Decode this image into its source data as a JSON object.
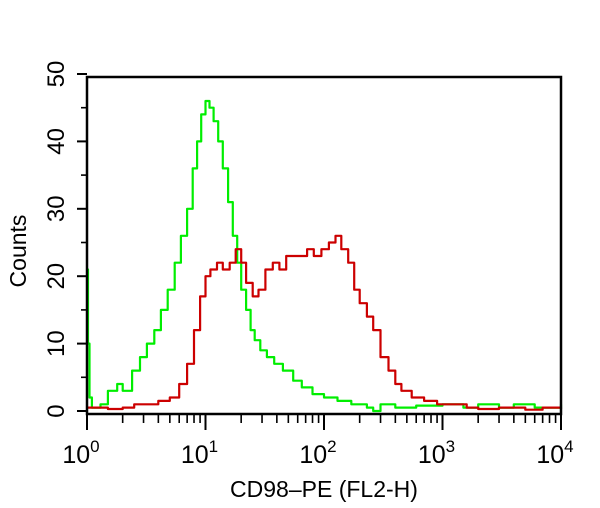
{
  "chart_data": {
    "type": "line",
    "title": "",
    "xlabel": "CD98–PE (FL2-H)",
    "ylabel": "Counts",
    "x_scale": "log",
    "xlim": [
      1,
      10000
    ],
    "ylim": [
      0,
      50
    ],
    "x_ticks": [
      {
        "value": 1,
        "base": "10",
        "exp": "0"
      },
      {
        "value": 10,
        "base": "10",
        "exp": "1"
      },
      {
        "value": 100,
        "base": "10",
        "exp": "2"
      },
      {
        "value": 1000,
        "base": "10",
        "exp": "3"
      },
      {
        "value": 10000,
        "base": "10",
        "exp": "4"
      }
    ],
    "y_ticks": [
      0,
      10,
      20,
      30,
      40,
      50
    ],
    "y_tick_labels": [
      "0",
      "10",
      "20",
      "30",
      "40",
      "50"
    ],
    "grid": false,
    "legend": "none",
    "series": [
      {
        "color": "#00ee00",
        "points": [
          [
            1.0,
            21
          ],
          [
            1.02,
            10
          ],
          [
            1.05,
            2
          ],
          [
            1.1,
            0.5
          ],
          [
            1.3,
            1
          ],
          [
            1.5,
            3
          ],
          [
            1.8,
            4
          ],
          [
            2.0,
            3
          ],
          [
            2.4,
            6
          ],
          [
            2.8,
            8
          ],
          [
            3.2,
            10
          ],
          [
            3.7,
            12
          ],
          [
            4.2,
            15
          ],
          [
            4.8,
            18
          ],
          [
            5.5,
            22
          ],
          [
            6.2,
            26
          ],
          [
            7.0,
            30
          ],
          [
            7.8,
            36
          ],
          [
            8.5,
            40
          ],
          [
            9.2,
            44
          ],
          [
            10.0,
            46
          ],
          [
            10.8,
            45
          ],
          [
            11.7,
            43
          ],
          [
            12.8,
            40
          ],
          [
            14.0,
            36
          ],
          [
            15.5,
            31
          ],
          [
            17.0,
            26
          ],
          [
            18.5,
            22
          ],
          [
            20.0,
            18
          ],
          [
            22.0,
            15
          ],
          [
            24.0,
            12
          ],
          [
            26.0,
            10.5
          ],
          [
            29.0,
            9
          ],
          [
            33.0,
            8
          ],
          [
            38.0,
            7
          ],
          [
            45.0,
            6
          ],
          [
            55.0,
            4.5
          ],
          [
            65.0,
            3.5
          ],
          [
            80.0,
            2.5
          ],
          [
            100.0,
            2
          ],
          [
            130.0,
            1.5
          ],
          [
            170.0,
            1
          ],
          [
            230.0,
            0.5
          ],
          [
            260.0,
            0
          ],
          [
            300.0,
            1
          ],
          [
            400.0,
            0.5
          ],
          [
            600.0,
            0.8
          ],
          [
            1000.0,
            1
          ],
          [
            1500.0,
            0.5
          ],
          [
            2000.0,
            1
          ],
          [
            3000.0,
            0.5
          ],
          [
            4000.0,
            1
          ],
          [
            6000.0,
            0.5
          ],
          [
            10000.0,
            1
          ]
        ]
      },
      {
        "color": "#cc0000",
        "points": [
          [
            1.0,
            0.5
          ],
          [
            1.5,
            0.3
          ],
          [
            2.0,
            0.5
          ],
          [
            2.5,
            1
          ],
          [
            3.0,
            1
          ],
          [
            4.0,
            1.5
          ],
          [
            5.0,
            2
          ],
          [
            6.0,
            4
          ],
          [
            7.0,
            7
          ],
          [
            8.0,
            12
          ],
          [
            9.0,
            17
          ],
          [
            10.0,
            20
          ],
          [
            11.0,
            21
          ],
          [
            12.5,
            22
          ],
          [
            14.0,
            21
          ],
          [
            16.0,
            22
          ],
          [
            18.0,
            24
          ],
          [
            20.0,
            22
          ],
          [
            22.0,
            19
          ],
          [
            25.0,
            17
          ],
          [
            28.0,
            18
          ],
          [
            32.0,
            21
          ],
          [
            37.0,
            22
          ],
          [
            42.0,
            21
          ],
          [
            48.0,
            23
          ],
          [
            55.0,
            23
          ],
          [
            63.0,
            23
          ],
          [
            72.0,
            24
          ],
          [
            82.0,
            23
          ],
          [
            95.0,
            24
          ],
          [
            110.0,
            25
          ],
          [
            125.0,
            26
          ],
          [
            140.0,
            24
          ],
          [
            160.0,
            22
          ],
          [
            180.0,
            18
          ],
          [
            200.0,
            16
          ],
          [
            230.0,
            14
          ],
          [
            260.0,
            12
          ],
          [
            300.0,
            8
          ],
          [
            350.0,
            6
          ],
          [
            400.0,
            4
          ],
          [
            450.0,
            3
          ],
          [
            550.0,
            2
          ],
          [
            700.0,
            1.5
          ],
          [
            900.0,
            1
          ],
          [
            1200.0,
            1
          ],
          [
            1600.0,
            0.5
          ],
          [
            2000.0,
            0.3
          ],
          [
            3000.0,
            0.5
          ],
          [
            5000.0,
            0.2
          ],
          [
            7000.0,
            0.5
          ],
          [
            10000.0,
            0.3
          ]
        ]
      }
    ]
  }
}
